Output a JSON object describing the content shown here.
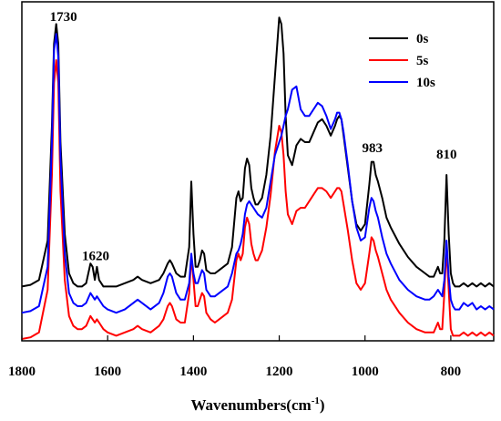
{
  "chart_data": {
    "type": "line",
    "xlabel": "Wavenumbers(cm",
    "xlabel_sup": "-1",
    "xlabel_end": ")",
    "ylabel": "",
    "xlim": [
      1800,
      700
    ],
    "ylim": [
      0,
      1
    ],
    "x_reversed": true,
    "y_ticks_shown": false,
    "grid": false,
    "legend_position": "top-right",
    "x_ticks": [
      1800,
      1600,
      1400,
      1200,
      1000,
      800
    ],
    "x_tick_labels": [
      "1800",
      "1600",
      "1400",
      "1200",
      "1000",
      "800"
    ],
    "annotations": [
      {
        "label": "1730",
        "x": 1720,
        "y": 0.97
      },
      {
        "label": "1620",
        "x": 1628,
        "y": 0.24
      },
      {
        "label": "983",
        "x": 983,
        "y": 0.57
      },
      {
        "label": "810",
        "x": 810,
        "y": 0.55
      }
    ],
    "series": [
      {
        "name": "0s",
        "color": "#000000",
        "x": [
          1800,
          1780,
          1760,
          1740,
          1730,
          1725,
          1720,
          1715,
          1710,
          1700,
          1690,
          1680,
          1670,
          1660,
          1650,
          1640,
          1635,
          1630,
          1625,
          1620,
          1610,
          1600,
          1580,
          1560,
          1540,
          1530,
          1520,
          1500,
          1480,
          1470,
          1460,
          1455,
          1450,
          1440,
          1430,
          1420,
          1410,
          1405,
          1400,
          1395,
          1390,
          1385,
          1380,
          1375,
          1370,
          1360,
          1350,
          1340,
          1320,
          1310,
          1300,
          1295,
          1290,
          1285,
          1280,
          1275,
          1270,
          1265,
          1260,
          1255,
          1250,
          1240,
          1230,
          1220,
          1210,
          1200,
          1195,
          1190,
          1185,
          1180,
          1170,
          1160,
          1150,
          1140,
          1130,
          1120,
          1110,
          1100,
          1090,
          1080,
          1070,
          1065,
          1060,
          1055,
          1050,
          1040,
          1030,
          1020,
          1010,
          1000,
          990,
          985,
          980,
          975,
          970,
          960,
          950,
          940,
          920,
          900,
          880,
          860,
          850,
          840,
          830,
          825,
          820,
          815,
          810,
          805,
          800,
          795,
          790,
          780,
          770,
          760,
          750,
          740,
          730,
          720,
          710,
          700
        ],
        "y": [
          0.16,
          0.165,
          0.18,
          0.3,
          0.65,
          0.9,
          0.96,
          0.9,
          0.6,
          0.32,
          0.2,
          0.17,
          0.16,
          0.16,
          0.17,
          0.23,
          0.22,
          0.18,
          0.22,
          0.18,
          0.16,
          0.16,
          0.16,
          0.17,
          0.18,
          0.19,
          0.18,
          0.17,
          0.18,
          0.2,
          0.23,
          0.24,
          0.23,
          0.2,
          0.19,
          0.19,
          0.28,
          0.48,
          0.32,
          0.22,
          0.22,
          0.24,
          0.27,
          0.26,
          0.21,
          0.2,
          0.2,
          0.21,
          0.23,
          0.28,
          0.43,
          0.45,
          0.42,
          0.43,
          0.52,
          0.55,
          0.53,
          0.46,
          0.43,
          0.41,
          0.41,
          0.43,
          0.5,
          0.62,
          0.8,
          0.98,
          0.96,
          0.87,
          0.68,
          0.56,
          0.53,
          0.59,
          0.61,
          0.6,
          0.6,
          0.63,
          0.66,
          0.67,
          0.65,
          0.62,
          0.65,
          0.67,
          0.68,
          0.67,
          0.62,
          0.52,
          0.42,
          0.35,
          0.33,
          0.35,
          0.47,
          0.54,
          0.54,
          0.5,
          0.48,
          0.43,
          0.37,
          0.34,
          0.29,
          0.25,
          0.22,
          0.2,
          0.19,
          0.19,
          0.22,
          0.2,
          0.2,
          0.3,
          0.5,
          0.32,
          0.2,
          0.17,
          0.16,
          0.16,
          0.17,
          0.16,
          0.17,
          0.16,
          0.17,
          0.16,
          0.17,
          0.16
        ]
      },
      {
        "name": "5s",
        "color": "#ff0000",
        "x": [
          1800,
          1780,
          1760,
          1740,
          1730,
          1725,
          1720,
          1715,
          1710,
          1700,
          1690,
          1680,
          1670,
          1660,
          1650,
          1640,
          1635,
          1630,
          1625,
          1620,
          1610,
          1600,
          1580,
          1560,
          1540,
          1530,
          1520,
          1500,
          1480,
          1470,
          1460,
          1455,
          1450,
          1440,
          1430,
          1420,
          1410,
          1405,
          1400,
          1395,
          1390,
          1385,
          1380,
          1375,
          1370,
          1360,
          1350,
          1340,
          1320,
          1310,
          1300,
          1295,
          1290,
          1285,
          1280,
          1275,
          1270,
          1265,
          1260,
          1255,
          1250,
          1240,
          1230,
          1220,
          1210,
          1200,
          1195,
          1190,
          1185,
          1180,
          1170,
          1160,
          1150,
          1140,
          1130,
          1120,
          1110,
          1100,
          1090,
          1080,
          1070,
          1065,
          1060,
          1055,
          1050,
          1040,
          1030,
          1020,
          1010,
          1000,
          990,
          985,
          980,
          975,
          970,
          960,
          950,
          940,
          920,
          900,
          880,
          860,
          850,
          840,
          830,
          825,
          820,
          815,
          810,
          805,
          800,
          795,
          790,
          780,
          770,
          760,
          750,
          740,
          730,
          720,
          710,
          700
        ],
        "y": [
          0.0,
          0.005,
          0.02,
          0.15,
          0.5,
          0.78,
          0.85,
          0.78,
          0.45,
          0.18,
          0.07,
          0.04,
          0.03,
          0.03,
          0.04,
          0.07,
          0.06,
          0.05,
          0.06,
          0.05,
          0.03,
          0.02,
          0.01,
          0.02,
          0.03,
          0.04,
          0.03,
          0.02,
          0.04,
          0.06,
          0.1,
          0.11,
          0.1,
          0.06,
          0.05,
          0.05,
          0.14,
          0.25,
          0.18,
          0.1,
          0.1,
          0.12,
          0.14,
          0.13,
          0.08,
          0.06,
          0.05,
          0.06,
          0.08,
          0.12,
          0.24,
          0.26,
          0.24,
          0.26,
          0.34,
          0.37,
          0.35,
          0.29,
          0.26,
          0.24,
          0.24,
          0.27,
          0.34,
          0.44,
          0.57,
          0.65,
          0.63,
          0.56,
          0.45,
          0.38,
          0.35,
          0.39,
          0.4,
          0.4,
          0.42,
          0.44,
          0.46,
          0.46,
          0.45,
          0.43,
          0.45,
          0.46,
          0.46,
          0.45,
          0.41,
          0.33,
          0.24,
          0.17,
          0.15,
          0.17,
          0.26,
          0.31,
          0.3,
          0.27,
          0.25,
          0.2,
          0.15,
          0.12,
          0.08,
          0.05,
          0.03,
          0.02,
          0.02,
          0.02,
          0.05,
          0.03,
          0.03,
          0.14,
          0.28,
          0.15,
          0.03,
          0.01,
          0.01,
          0.01,
          0.02,
          0.01,
          0.02,
          0.01,
          0.02,
          0.01,
          0.02,
          0.01
        ]
      },
      {
        "name": "10s",
        "color": "#0000ff",
        "x": [
          1800,
          1780,
          1760,
          1740,
          1730,
          1725,
          1720,
          1715,
          1710,
          1700,
          1690,
          1680,
          1670,
          1660,
          1650,
          1640,
          1635,
          1630,
          1625,
          1620,
          1610,
          1600,
          1580,
          1560,
          1540,
          1530,
          1520,
          1500,
          1480,
          1470,
          1460,
          1455,
          1450,
          1440,
          1430,
          1420,
          1410,
          1405,
          1400,
          1395,
          1390,
          1385,
          1380,
          1375,
          1370,
          1360,
          1350,
          1340,
          1320,
          1310,
          1300,
          1295,
          1290,
          1285,
          1280,
          1275,
          1270,
          1265,
          1260,
          1255,
          1250,
          1240,
          1230,
          1220,
          1210,
          1200,
          1195,
          1190,
          1185,
          1180,
          1170,
          1160,
          1150,
          1140,
          1130,
          1120,
          1110,
          1100,
          1090,
          1080,
          1070,
          1065,
          1060,
          1055,
          1050,
          1040,
          1030,
          1020,
          1010,
          1000,
          990,
          985,
          980,
          975,
          970,
          960,
          950,
          940,
          920,
          900,
          880,
          860,
          850,
          840,
          830,
          825,
          820,
          815,
          810,
          805,
          800,
          795,
          790,
          780,
          770,
          760,
          750,
          740,
          730,
          720,
          710,
          700
        ],
        "y": [
          0.08,
          0.085,
          0.1,
          0.22,
          0.6,
          0.88,
          0.93,
          0.86,
          0.55,
          0.26,
          0.14,
          0.11,
          0.1,
          0.1,
          0.11,
          0.14,
          0.13,
          0.12,
          0.13,
          0.12,
          0.1,
          0.09,
          0.08,
          0.09,
          0.11,
          0.12,
          0.11,
          0.09,
          0.11,
          0.14,
          0.19,
          0.2,
          0.19,
          0.14,
          0.12,
          0.12,
          0.17,
          0.26,
          0.2,
          0.17,
          0.17,
          0.19,
          0.21,
          0.2,
          0.15,
          0.13,
          0.13,
          0.14,
          0.16,
          0.2,
          0.26,
          0.27,
          0.29,
          0.32,
          0.38,
          0.41,
          0.42,
          0.41,
          0.4,
          0.39,
          0.38,
          0.37,
          0.4,
          0.48,
          0.56,
          0.6,
          0.62,
          0.65,
          0.68,
          0.7,
          0.76,
          0.77,
          0.7,
          0.68,
          0.68,
          0.7,
          0.72,
          0.71,
          0.68,
          0.64,
          0.67,
          0.69,
          0.69,
          0.67,
          0.63,
          0.53,
          0.42,
          0.34,
          0.3,
          0.31,
          0.4,
          0.43,
          0.42,
          0.39,
          0.37,
          0.31,
          0.26,
          0.23,
          0.18,
          0.15,
          0.13,
          0.12,
          0.12,
          0.13,
          0.15,
          0.14,
          0.13,
          0.18,
          0.3,
          0.19,
          0.12,
          0.1,
          0.09,
          0.09,
          0.11,
          0.1,
          0.11,
          0.09,
          0.1,
          0.09,
          0.1,
          0.09
        ]
      }
    ]
  }
}
